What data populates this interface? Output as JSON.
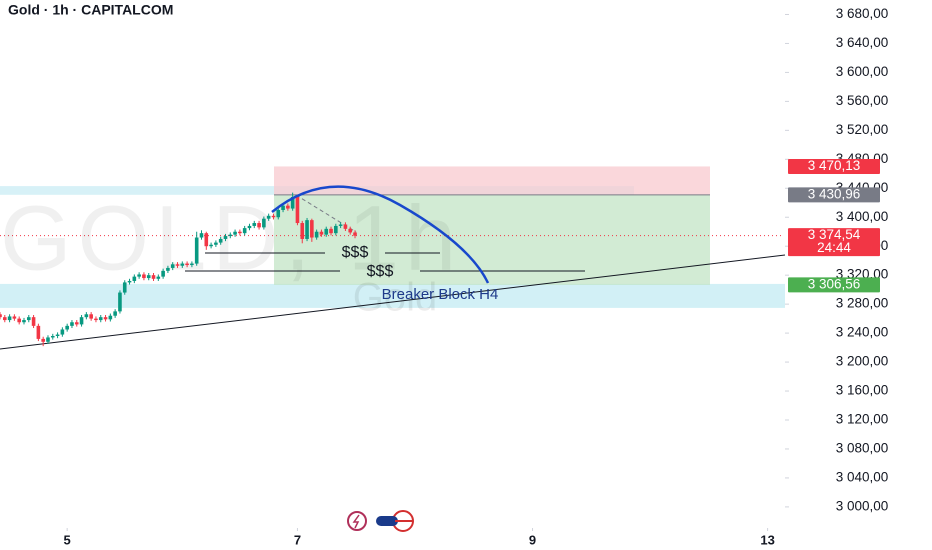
{
  "chart_data": {
    "type": "candlestick",
    "title": "Gold · 1h · CAPITALCOM",
    "watermark": [
      "GOLD, 1h",
      "Gold"
    ],
    "annotations": [
      "$$$",
      "$$$",
      "Breaker Block H4"
    ],
    "up_color": "#089981",
    "down_color": "#f23645",
    "ylim": [
      2975,
      3700
    ],
    "yticks": [
      {
        "value": 3000,
        "label": "3 000,00"
      },
      {
        "value": 3040,
        "label": "3 040,00"
      },
      {
        "value": 3080,
        "label": "3 080,00"
      },
      {
        "value": 3120,
        "label": "3 120,00"
      },
      {
        "value": 3160,
        "label": "3 160,00"
      },
      {
        "value": 3200,
        "label": "3 200,00"
      },
      {
        "value": 3240,
        "label": "3 240,00"
      },
      {
        "value": 3280,
        "label": "3 280,00"
      },
      {
        "value": 3320,
        "label": "3 320,00"
      },
      {
        "value": 3360,
        "label": "3 360,00"
      },
      {
        "value": 3400,
        "label": "3 400,00"
      },
      {
        "value": 3440,
        "label": "3 440,00"
      },
      {
        "value": 3480,
        "label": "3 480,00"
      },
      {
        "value": 3520,
        "label": "3 520,00"
      },
      {
        "value": 3560,
        "label": "3 560,00"
      },
      {
        "value": 3600,
        "label": "3 600,00"
      },
      {
        "value": 3640,
        "label": "3 640,00"
      },
      {
        "value": 3680,
        "label": "3 680,00"
      }
    ],
    "xlim": [
      0,
      163
    ],
    "xticks": [
      {
        "value": 14,
        "label": "5"
      },
      {
        "value": 62,
        "label": "7"
      },
      {
        "value": 111,
        "label": "9"
      },
      {
        "value": 160,
        "label": "13"
      }
    ],
    "price_labels": [
      {
        "value": 3470.13,
        "label": "3 470,13",
        "color": "#f23645"
      },
      {
        "value": 3430.96,
        "label": "3 430,96",
        "color": "#787b86"
      },
      {
        "value": 3374.54,
        "label": "3 374,54",
        "color": "#f23645",
        "countdown": "24:44"
      },
      {
        "value": 3306.56,
        "label": "3 306,56",
        "color": "#4caf50"
      }
    ],
    "x": [
      0,
      1,
      2,
      3,
      4,
      5,
      6,
      7,
      8,
      9,
      10,
      11,
      12,
      13,
      14,
      15,
      16,
      17,
      18,
      19,
      20,
      21,
      22,
      23,
      24,
      25,
      26,
      27,
      28,
      29,
      30,
      31,
      32,
      33,
      34,
      35,
      36,
      37,
      38,
      39,
      40,
      41,
      42,
      43,
      44,
      45,
      46,
      47,
      48,
      49,
      50,
      51,
      52,
      53,
      54,
      55,
      56,
      57,
      58,
      59,
      60,
      61,
      62,
      63,
      64,
      65,
      66,
      67,
      68,
      69,
      70,
      71,
      72,
      73,
      74
    ],
    "open": [
      3266,
      3262,
      3258,
      3263,
      3260,
      3255,
      3258,
      3262,
      3250,
      3232,
      3228,
      3234,
      3236,
      3238,
      3245,
      3250,
      3255,
      3252,
      3262,
      3266,
      3260,
      3258,
      3262,
      3259,
      3264,
      3270,
      3296,
      3310,
      3312,
      3318,
      3321,
      3316,
      3320,
      3315,
      3318,
      3326,
      3330,
      3335,
      3333,
      3336,
      3334,
      3336,
      3372,
      3378,
      3360,
      3362,
      3365,
      3370,
      3374,
      3376,
      3380,
      3378,
      3385,
      3388,
      3392,
      3386,
      3398,
      3402,
      3400,
      3410,
      3416,
      3412,
      3428,
      3392,
      3370,
      3396,
      3372,
      3380,
      3376,
      3384,
      3378,
      3388,
      3390,
      3384,
      3379
    ],
    "high": [
      3269,
      3265,
      3266,
      3266,
      3263,
      3261,
      3265,
      3265,
      3253,
      3235,
      3237,
      3239,
      3241,
      3248,
      3253,
      3258,
      3258,
      3265,
      3269,
      3269,
      3263,
      3265,
      3265,
      3267,
      3273,
      3299,
      3313,
      3315,
      3321,
      3324,
      3324,
      3323,
      3323,
      3321,
      3329,
      3333,
      3338,
      3338,
      3339,
      3339,
      3339,
      3380,
      3382,
      3380,
      3365,
      3368,
      3373,
      3377,
      3379,
      3383,
      3383,
      3388,
      3391,
      3395,
      3395,
      3401,
      3405,
      3405,
      3413,
      3419,
      3419,
      3434,
      3430,
      3395,
      3399,
      3398,
      3383,
      3383,
      3387,
      3387,
      3391,
      3393,
      3393,
      3387,
      3382
    ],
    "low": [
      3259,
      3255,
      3255,
      3257,
      3252,
      3252,
      3255,
      3247,
      3229,
      3222,
      3225,
      3231,
      3233,
      3235,
      3242,
      3247,
      3249,
      3249,
      3259,
      3257,
      3255,
      3255,
      3256,
      3256,
      3261,
      3267,
      3293,
      3307,
      3309,
      3315,
      3313,
      3313,
      3312,
      3312,
      3315,
      3323,
      3327,
      3330,
      3330,
      3331,
      3331,
      3333,
      3369,
      3355,
      3357,
      3359,
      3362,
      3367,
      3371,
      3373,
      3375,
      3375,
      3382,
      3385,
      3383,
      3383,
      3395,
      3397,
      3397,
      3407,
      3409,
      3409,
      3389,
      3364,
      3367,
      3366,
      3369,
      3373,
      3373,
      3375,
      3375,
      3385,
      3381,
      3376,
      3371
    ],
    "close": [
      3262,
      3258,
      3263,
      3260,
      3255,
      3258,
      3262,
      3250,
      3232,
      3228,
      3234,
      3236,
      3238,
      3245,
      3250,
      3255,
      3252,
      3262,
      3266,
      3260,
      3258,
      3262,
      3259,
      3264,
      3270,
      3296,
      3310,
      3312,
      3318,
      3321,
      3316,
      3320,
      3315,
      3318,
      3326,
      3330,
      3335,
      3333,
      3336,
      3334,
      3336,
      3372,
      3378,
      3360,
      3362,
      3365,
      3370,
      3374,
      3376,
      3380,
      3378,
      3385,
      3388,
      3392,
      3386,
      3398,
      3402,
      3400,
      3410,
      3416,
      3412,
      3428,
      3392,
      3370,
      3396,
      3372,
      3380,
      3376,
      3384,
      3378,
      3388,
      3390,
      3384,
      3379,
      3374.54
    ]
  }
}
